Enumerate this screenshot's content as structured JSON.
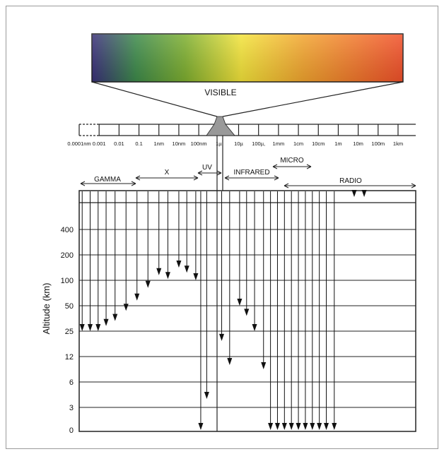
{
  "figure": {
    "visible_label": "VISIBLE",
    "spectrum_colors": [
      "#3a2f7a",
      "#3d8a4b",
      "#7fb030",
      "#f4e43a",
      "#f3a52f",
      "#f2502a"
    ],
    "wavelength_ticks": [
      "0.0001nm",
      "0.001",
      "0.01",
      "0.1",
      "1nm",
      "10nm",
      "100nm",
      "1µ",
      "10µ",
      "100µ,",
      "1mm",
      "1cm",
      "10cm",
      "1m",
      "10m",
      "100m",
      "1km"
    ],
    "bands": [
      {
        "name": "GAMMA"
      },
      {
        "name": "X"
      },
      {
        "name": "UV"
      },
      {
        "name": "INFRARED"
      },
      {
        "name": "MICRO"
      },
      {
        "name": "RADIO"
      }
    ],
    "altitude_axis": {
      "label": "Altitude (km)",
      "ticks": [
        "400",
        "200",
        "100",
        "50",
        "25",
        "12",
        "6",
        "3",
        "0"
      ]
    },
    "penetration_levels": [
      {
        "wavelength_index": 0.15,
        "altitude_km": 25
      },
      {
        "wavelength_index": 0.55,
        "altitude_km": 25
      },
      {
        "wavelength_index": 0.95,
        "altitude_km": 25
      },
      {
        "wavelength_index": 1.35,
        "altitude_km": 30
      },
      {
        "wavelength_index": 1.8,
        "altitude_km": 35
      },
      {
        "wavelength_index": 2.35,
        "altitude_km": 45
      },
      {
        "wavelength_index": 2.9,
        "altitude_km": 60
      },
      {
        "wavelength_index": 3.45,
        "altitude_km": 85
      },
      {
        "wavelength_index": 4.0,
        "altitude_km": 120
      },
      {
        "wavelength_index": 4.45,
        "altitude_km": 105
      },
      {
        "wavelength_index": 5.0,
        "altitude_km": 150
      },
      {
        "wavelength_index": 5.4,
        "altitude_km": 130
      },
      {
        "wavelength_index": 5.85,
        "altitude_km": 100
      },
      {
        "wavelength_index": 6.1,
        "altitude_km": 0
      },
      {
        "wavelength_index": 6.4,
        "altitude_km": 4
      },
      {
        "wavelength_index": 7.15,
        "altitude_km": 20
      },
      {
        "wavelength_index": 7.55,
        "altitude_km": 10
      },
      {
        "wavelength_index": 8.05,
        "altitude_km": 50
      },
      {
        "wavelength_index": 8.4,
        "altitude_km": 40
      },
      {
        "wavelength_index": 8.8,
        "altitude_km": 25
      },
      {
        "wavelength_index": 9.25,
        "altitude_km": 9
      },
      {
        "wavelength_index": 9.6,
        "altitude_km": 0
      },
      {
        "wavelength_index": 9.95,
        "altitude_km": 0
      },
      {
        "wavelength_index": 10.3,
        "altitude_km": 0
      },
      {
        "wavelength_index": 10.65,
        "altitude_km": 0
      },
      {
        "wavelength_index": 11.0,
        "altitude_km": 0
      },
      {
        "wavelength_index": 11.35,
        "altitude_km": 0
      },
      {
        "wavelength_index": 11.7,
        "altitude_km": 0
      },
      {
        "wavelength_index": 12.05,
        "altitude_km": 0
      },
      {
        "wavelength_index": 12.4,
        "altitude_km": 0
      },
      {
        "wavelength_index": 12.8,
        "altitude_km": 0
      },
      {
        "wavelength_index": 13.8,
        "altitude_km": 500
      },
      {
        "wavelength_index": 14.3,
        "altitude_km": 500
      }
    ]
  }
}
